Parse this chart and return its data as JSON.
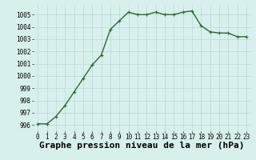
{
  "x": [
    0,
    1,
    2,
    3,
    4,
    5,
    6,
    7,
    8,
    9,
    10,
    11,
    12,
    13,
    14,
    15,
    16,
    17,
    18,
    19,
    20,
    21,
    22,
    23
  ],
  "y": [
    996.1,
    996.1,
    996.7,
    997.6,
    998.7,
    999.8,
    1000.9,
    1001.7,
    1003.8,
    1004.5,
    1005.2,
    1005.0,
    1005.0,
    1005.2,
    1005.0,
    1005.0,
    1005.2,
    1005.3,
    1004.1,
    1003.6,
    1003.5,
    1003.5,
    1003.2,
    1003.2
  ],
  "line_color": "#2d6a2d",
  "marker": "+",
  "bg_color": "#d7f0ee",
  "grid_color": "#b8d8d4",
  "xlabel": "Graphe pression niveau de la mer (hPa)",
  "xlabel_fontsize": 8,
  "ylim": [
    995.5,
    1005.8
  ],
  "yticks": [
    996,
    997,
    998,
    999,
    1000,
    1001,
    1002,
    1003,
    1004,
    1005
  ],
  "xticks": [
    0,
    1,
    2,
    3,
    4,
    5,
    6,
    7,
    8,
    9,
    10,
    11,
    12,
    13,
    14,
    15,
    16,
    17,
    18,
    19,
    20,
    21,
    22,
    23
  ],
  "tick_fontsize": 5.5,
  "linewidth": 1.0,
  "markersize": 3.5,
  "xlim": [
    -0.5,
    23.5
  ]
}
